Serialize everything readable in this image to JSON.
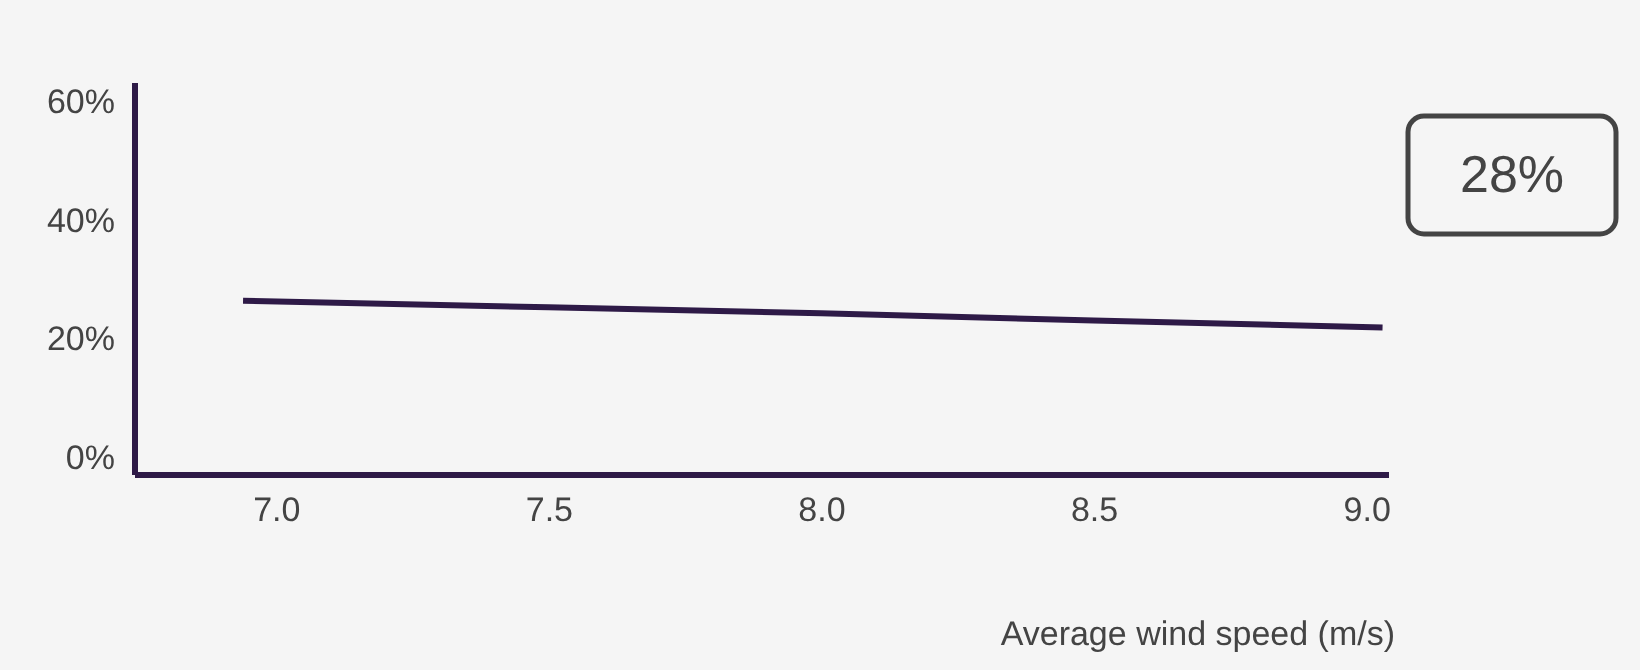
{
  "chart_data": {
    "type": "line",
    "xlabel": "Average wind speed (m/s)",
    "x": [
      6.94,
      7.5,
      8.0,
      8.5,
      9.03
    ],
    "series": [
      {
        "color": "#2e1a47",
        "values": [
          26.5,
          25.4,
          24.4,
          23.2,
          22.0
        ]
      }
    ],
    "xlim": [
      6.74,
      9.04
    ],
    "xticks": [
      {
        "value": 7,
        "label": "7.0"
      },
      7.5,
      {
        "value": 8,
        "label": "8.0"
      },
      8.5,
      {
        "value": 9,
        "label": "9.0"
      }
    ],
    "ylim": [
      -2.7,
      63.4
    ],
    "yticks": [
      {
        "value": 0,
        "label": "0%"
      },
      {
        "value": 20,
        "label": "20%"
      },
      {
        "value": 40,
        "label": "40%"
      },
      {
        "value": 60,
        "label": "60%"
      }
    ],
    "grid": false,
    "marker": "none",
    "line_style": "solid",
    "annotations": [
      "28%"
    ]
  }
}
